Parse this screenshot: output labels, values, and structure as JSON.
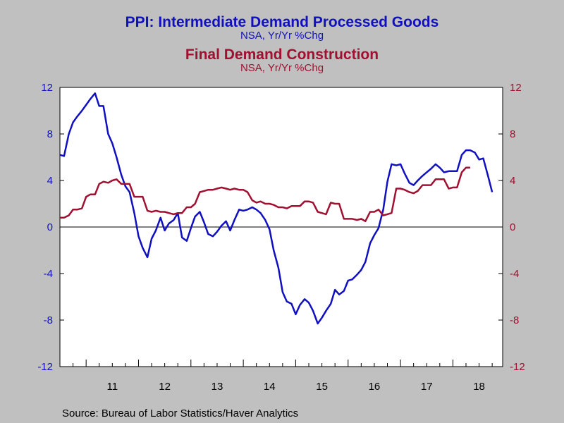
{
  "colors": {
    "background": "#c0c0c0",
    "series1": "#1010c0",
    "series2": "#a01030",
    "axis": "#000000"
  },
  "chart_data": {
    "type": "line",
    "titles": [
      {
        "text": "PPI: Intermediate Demand Processed Goods",
        "color": "#1010c0"
      },
      {
        "text": "NSA, Yr/Yr %Chg",
        "color": "#1010c0"
      },
      {
        "text": "Final Demand Construction",
        "color": "#a01030"
      },
      {
        "text": "NSA, Yr/Yr %Chg",
        "color": "#a01030"
      }
    ],
    "source": "Source:  Bureau of Labor Statistics/Haver Analytics",
    "x_range": [
      2010.5,
      2018.95
    ],
    "x_tick_labels": [
      "11",
      "12",
      "13",
      "14",
      "15",
      "16",
      "17",
      "18"
    ],
    "x_tick_label_years": [
      2011,
      2012,
      2013,
      2014,
      2015,
      2016,
      2017,
      2018
    ],
    "y_range": [
      -12,
      12
    ],
    "y_ticks": [
      12,
      8,
      4,
      0,
      -4,
      -8,
      -12
    ],
    "y_tick_labels": [
      "12",
      "8",
      "4",
      "0",
      "-4",
      "-8",
      "-12"
    ],
    "y_left_color": "#1010c0",
    "y_right_color": "#a01030",
    "zero_line": true,
    "grid": false,
    "series": [
      {
        "axis": "left",
        "color": "#1010c0",
        "points": [
          [
            2010.5,
            6.2
          ],
          [
            2010.58,
            6.1
          ],
          [
            2010.67,
            8.0
          ],
          [
            2010.75,
            9.0
          ],
          [
            2010.83,
            9.5
          ],
          [
            2010.92,
            10.0
          ],
          [
            2011.0,
            10.5
          ],
          [
            2011.08,
            11.0
          ],
          [
            2011.17,
            11.5
          ],
          [
            2011.25,
            10.4
          ],
          [
            2011.33,
            10.4
          ],
          [
            2011.42,
            8.0
          ],
          [
            2011.5,
            7.2
          ],
          [
            2011.58,
            6.0
          ],
          [
            2011.67,
            4.5
          ],
          [
            2011.75,
            3.5
          ],
          [
            2011.83,
            3.0
          ],
          [
            2011.92,
            1.2
          ],
          [
            2012.0,
            -0.8
          ],
          [
            2012.08,
            -1.8
          ],
          [
            2012.17,
            -2.6
          ],
          [
            2012.25,
            -1.0
          ],
          [
            2012.33,
            -0.3
          ],
          [
            2012.42,
            0.8
          ],
          [
            2012.5,
            -0.3
          ],
          [
            2012.58,
            0.3
          ],
          [
            2012.67,
            0.6
          ],
          [
            2012.75,
            1.2
          ],
          [
            2012.83,
            -0.9
          ],
          [
            2012.92,
            -1.2
          ],
          [
            2013.0,
            -0.1
          ],
          [
            2013.08,
            0.9
          ],
          [
            2013.17,
            1.3
          ],
          [
            2013.25,
            0.4
          ],
          [
            2013.33,
            -0.6
          ],
          [
            2013.42,
            -0.8
          ],
          [
            2013.5,
            -0.4
          ],
          [
            2013.58,
            0.1
          ],
          [
            2013.67,
            0.5
          ],
          [
            2013.75,
            -0.3
          ],
          [
            2013.83,
            0.6
          ],
          [
            2013.92,
            1.5
          ],
          [
            2014.0,
            1.4
          ],
          [
            2014.08,
            1.5
          ],
          [
            2014.17,
            1.7
          ],
          [
            2014.25,
            1.5
          ],
          [
            2014.33,
            1.2
          ],
          [
            2014.42,
            0.6
          ],
          [
            2014.5,
            -0.2
          ],
          [
            2014.58,
            -2.0
          ],
          [
            2014.67,
            -3.5
          ],
          [
            2014.75,
            -5.6
          ],
          [
            2014.83,
            -6.4
          ],
          [
            2014.92,
            -6.6
          ],
          [
            2015.0,
            -7.5
          ],
          [
            2015.08,
            -6.7
          ],
          [
            2015.17,
            -6.2
          ],
          [
            2015.25,
            -6.5
          ],
          [
            2015.33,
            -7.2
          ],
          [
            2015.42,
            -8.3
          ],
          [
            2015.5,
            -7.8
          ],
          [
            2015.58,
            -7.2
          ],
          [
            2015.67,
            -6.6
          ],
          [
            2015.75,
            -5.4
          ],
          [
            2015.83,
            -5.8
          ],
          [
            2015.92,
            -5.5
          ],
          [
            2016.0,
            -4.6
          ],
          [
            2016.08,
            -4.5
          ],
          [
            2016.17,
            -4.1
          ],
          [
            2016.25,
            -3.7
          ],
          [
            2016.33,
            -3.0
          ],
          [
            2016.42,
            -1.4
          ],
          [
            2016.5,
            -0.7
          ],
          [
            2016.58,
            -0.1
          ],
          [
            2016.67,
            1.5
          ],
          [
            2016.75,
            3.9
          ],
          [
            2016.83,
            5.4
          ],
          [
            2016.92,
            5.3
          ],
          [
            2017.0,
            5.4
          ],
          [
            2017.08,
            4.6
          ],
          [
            2017.17,
            3.8
          ],
          [
            2017.25,
            3.6
          ],
          [
            2017.33,
            4.0
          ],
          [
            2017.42,
            4.4
          ],
          [
            2017.5,
            4.7
          ],
          [
            2017.58,
            5.0
          ],
          [
            2017.67,
            5.4
          ],
          [
            2017.75,
            5.1
          ],
          [
            2017.83,
            4.7
          ],
          [
            2017.92,
            4.8
          ],
          [
            2018.0,
            4.8
          ],
          [
            2018.08,
            4.8
          ],
          [
            2018.17,
            6.2
          ],
          [
            2018.25,
            6.6
          ],
          [
            2018.33,
            6.6
          ],
          [
            2018.42,
            6.4
          ],
          [
            2018.5,
            5.8
          ],
          [
            2018.58,
            5.9
          ],
          [
            2018.67,
            4.4
          ],
          [
            2018.75,
            3.0
          ]
        ]
      },
      {
        "axis": "right",
        "color": "#a01030",
        "points": [
          [
            2010.5,
            0.8
          ],
          [
            2010.58,
            0.8
          ],
          [
            2010.67,
            1.0
          ],
          [
            2010.75,
            1.5
          ],
          [
            2010.83,
            1.5
          ],
          [
            2010.92,
            1.6
          ],
          [
            2011.0,
            2.6
          ],
          [
            2011.08,
            2.8
          ],
          [
            2011.17,
            2.8
          ],
          [
            2011.25,
            3.7
          ],
          [
            2011.33,
            3.9
          ],
          [
            2011.42,
            3.8
          ],
          [
            2011.5,
            4.0
          ],
          [
            2011.58,
            4.1
          ],
          [
            2011.67,
            3.7
          ],
          [
            2011.75,
            3.7
          ],
          [
            2011.83,
            3.7
          ],
          [
            2011.92,
            2.6
          ],
          [
            2012.0,
            2.6
          ],
          [
            2012.08,
            2.6
          ],
          [
            2012.17,
            1.4
          ],
          [
            2012.25,
            1.3
          ],
          [
            2012.33,
            1.4
          ],
          [
            2012.42,
            1.3
          ],
          [
            2012.5,
            1.3
          ],
          [
            2012.58,
            1.2
          ],
          [
            2012.67,
            1.1
          ],
          [
            2012.75,
            1.2
          ],
          [
            2012.83,
            1.2
          ],
          [
            2012.92,
            1.7
          ],
          [
            2013.0,
            1.7
          ],
          [
            2013.08,
            2.0
          ],
          [
            2013.17,
            3.0
          ],
          [
            2013.25,
            3.1
          ],
          [
            2013.33,
            3.2
          ],
          [
            2013.42,
            3.2
          ],
          [
            2013.5,
            3.3
          ],
          [
            2013.58,
            3.4
          ],
          [
            2013.67,
            3.3
          ],
          [
            2013.75,
            3.2
          ],
          [
            2013.83,
            3.3
          ],
          [
            2013.92,
            3.2
          ],
          [
            2014.0,
            3.2
          ],
          [
            2014.08,
            3.0
          ],
          [
            2014.17,
            2.3
          ],
          [
            2014.25,
            2.1
          ],
          [
            2014.33,
            2.2
          ],
          [
            2014.42,
            2.0
          ],
          [
            2014.5,
            2.0
          ],
          [
            2014.58,
            1.9
          ],
          [
            2014.67,
            1.7
          ],
          [
            2014.75,
            1.7
          ],
          [
            2014.83,
            1.6
          ],
          [
            2014.92,
            1.8
          ],
          [
            2015.0,
            1.8
          ],
          [
            2015.08,
            1.8
          ],
          [
            2015.17,
            2.2
          ],
          [
            2015.25,
            2.2
          ],
          [
            2015.33,
            2.1
          ],
          [
            2015.42,
            1.3
          ],
          [
            2015.5,
            1.2
          ],
          [
            2015.58,
            1.1
          ],
          [
            2015.67,
            2.1
          ],
          [
            2015.75,
            2.0
          ],
          [
            2015.83,
            2.0
          ],
          [
            2015.92,
            0.7
          ],
          [
            2016.0,
            0.7
          ],
          [
            2016.08,
            0.7
          ],
          [
            2016.17,
            0.6
          ],
          [
            2016.25,
            0.7
          ],
          [
            2016.33,
            0.5
          ],
          [
            2016.42,
            1.3
          ],
          [
            2016.5,
            1.3
          ],
          [
            2016.58,
            1.5
          ],
          [
            2016.67,
            1.0
          ],
          [
            2016.75,
            1.1
          ],
          [
            2016.83,
            1.2
          ],
          [
            2016.92,
            3.3
          ],
          [
            2017.0,
            3.3
          ],
          [
            2017.08,
            3.2
          ],
          [
            2017.17,
            3.0
          ],
          [
            2017.25,
            2.9
          ],
          [
            2017.33,
            3.1
          ],
          [
            2017.42,
            3.6
          ],
          [
            2017.5,
            3.6
          ],
          [
            2017.58,
            3.6
          ],
          [
            2017.67,
            4.1
          ],
          [
            2017.75,
            4.1
          ],
          [
            2017.83,
            4.1
          ],
          [
            2017.92,
            3.3
          ],
          [
            2018.0,
            3.4
          ],
          [
            2018.08,
            3.4
          ],
          [
            2018.17,
            4.7
          ],
          [
            2018.25,
            5.1
          ],
          [
            2018.33,
            5.1
          ]
        ]
      }
    ]
  }
}
